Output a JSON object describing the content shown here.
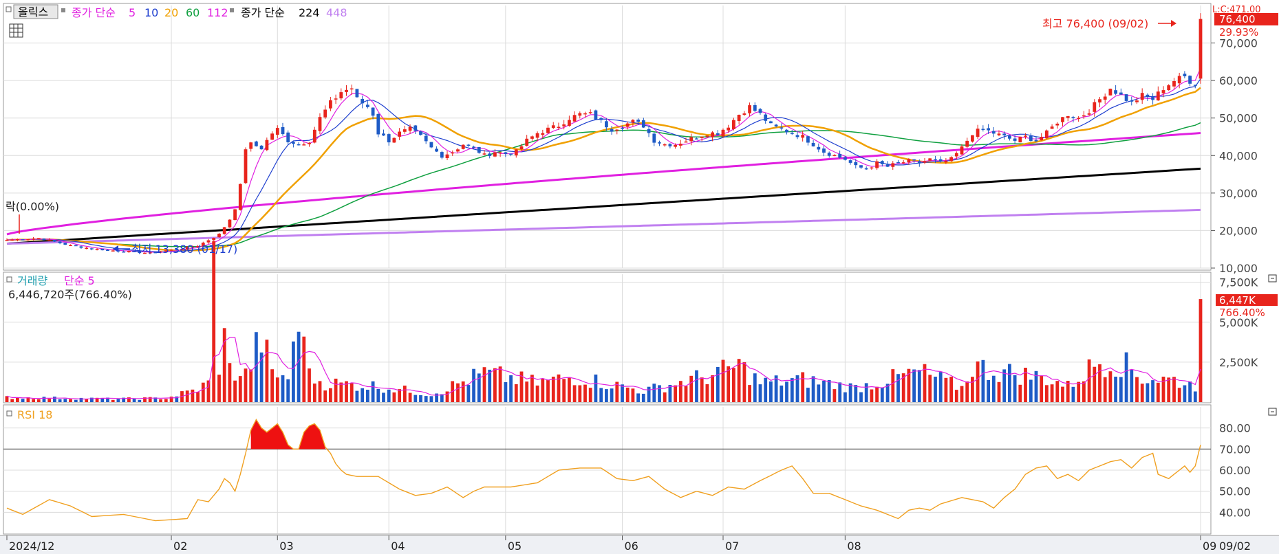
{
  "header": {
    "stock_name": "올릭스",
    "ma_label": "종가 단순",
    "ma_periods": [
      "5",
      "10",
      "20",
      "60",
      "112"
    ],
    "ma_colors": [
      "#e020e0",
      "#1e3fcf",
      "#f0a000",
      "#10a040",
      "#e020e0"
    ],
    "ma2_label": "종가 단순",
    "ma2_periods": [
      "224",
      "448"
    ],
    "ma2_colors": [
      "#000000",
      "#c080f0"
    ],
    "top_right_partial": "L:C:471.00"
  },
  "price_panel": {
    "current_price": "76,400",
    "change_pct": "29.93%",
    "high_annotation": "최고 76,400 (09/02)",
    "low_annotation": "최저 13,380 (01/17)",
    "left_annotation": "락(0.00%)",
    "y_ticks": [
      "70,000",
      "60,000",
      "50,000",
      "40,000",
      "30,000",
      "20,000",
      "10,000"
    ]
  },
  "volume_panel": {
    "title": "거래량",
    "ma_label": "단순 5",
    "current_value": "6,446,720주(766.40%)",
    "badge_value": "6,447K",
    "badge_pct": "766.40%",
    "y_ticks": [
      "7,500K",
      "5,000K",
      "2,500K"
    ]
  },
  "rsi_panel": {
    "title": "RSI 18",
    "y_ticks": [
      "80.00",
      "70.00",
      "60.00",
      "50.00",
      "40.00"
    ],
    "current": "72.00"
  },
  "x_axis": {
    "labels": [
      "2024/12",
      "02",
      "03",
      "04",
      "05",
      "06",
      "07",
      "08",
      "09"
    ],
    "right_label": "09/02"
  },
  "colors": {
    "up": "#e8241c",
    "down": "#1e5bc6",
    "ma5": "#e020e0",
    "ma10": "#1e3fcf",
    "ma20": "#f0a000",
    "ma60": "#10a040",
    "ma112": "#e020e0",
    "ma224": "#000000",
    "ma448": "#c080f0",
    "rsi": "#f0a020",
    "grid": "#dcdcdc"
  },
  "chart_data": [
    {
      "type": "candlestick",
      "title": "올릭스",
      "x_labels": [
        "2024/12",
        "02",
        "03",
        "04",
        "05",
        "06",
        "07",
        "08",
        "09"
      ],
      "ylim": [
        10000,
        80000
      ],
      "close_keypoints": [
        [
          0,
          17500
        ],
        [
          6,
          18000
        ],
        [
          12,
          16000
        ],
        [
          17,
          15000
        ],
        [
          22,
          14500
        ],
        [
          27,
          14000
        ],
        [
          29,
          14500
        ],
        [
          32,
          15000
        ],
        [
          36,
          16000
        ],
        [
          38,
          17500
        ],
        [
          40,
          19000
        ],
        [
          41,
          21000
        ],
        [
          42,
          23000
        ],
        [
          43,
          26000
        ],
        [
          44,
          32000
        ],
        [
          45,
          42000
        ],
        [
          46,
          43000
        ],
        [
          48,
          42000
        ],
        [
          50,
          46000
        ],
        [
          51,
          47000
        ],
        [
          53,
          44000
        ],
        [
          55,
          43000
        ],
        [
          57,
          44000
        ],
        [
          59,
          50000
        ],
        [
          61,
          54000
        ],
        [
          63,
          57000
        ],
        [
          65,
          58000
        ],
        [
          66,
          55000
        ],
        [
          68,
          53000
        ],
        [
          69,
          51000
        ],
        [
          70,
          46000
        ],
        [
          72,
          44000
        ],
        [
          74,
          46000
        ],
        [
          76,
          47000
        ],
        [
          78,
          45000
        ],
        [
          80,
          42000
        ],
        [
          82,
          40000
        ],
        [
          84,
          41000
        ],
        [
          86,
          43000
        ],
        [
          88,
          42000
        ],
        [
          90,
          40000
        ],
        [
          92,
          41000
        ],
        [
          94,
          40500
        ],
        [
          96,
          41000
        ],
        [
          98,
          44000
        ],
        [
          100,
          46000
        ],
        [
          102,
          47000
        ],
        [
          104,
          48000
        ],
        [
          106,
          50000
        ],
        [
          108,
          51000
        ],
        [
          110,
          51000
        ],
        [
          112,
          49000
        ],
        [
          114,
          47000
        ],
        [
          116,
          48000
        ],
        [
          118,
          49000
        ],
        [
          120,
          48000
        ],
        [
          122,
          44000
        ],
        [
          124,
          43000
        ],
        [
          126,
          43000
        ],
        [
          128,
          44000
        ],
        [
          130,
          45000
        ],
        [
          132,
          46000
        ],
        [
          134,
          46000
        ],
        [
          136,
          48000
        ],
        [
          138,
          51000
        ],
        [
          140,
          53000
        ],
        [
          142,
          51000
        ],
        [
          144,
          48000
        ],
        [
          146,
          47000
        ],
        [
          148,
          46000
        ],
        [
          150,
          45000
        ],
        [
          152,
          43000
        ],
        [
          154,
          41000
        ],
        [
          156,
          40000
        ],
        [
          158,
          39000
        ],
        [
          160,
          37000
        ],
        [
          162,
          36500
        ],
        [
          164,
          38000
        ],
        [
          166,
          37000
        ],
        [
          168,
          38000
        ],
        [
          170,
          38500
        ],
        [
          172,
          38000
        ],
        [
          174,
          39000
        ],
        [
          176,
          38000
        ],
        [
          178,
          39000
        ],
        [
          180,
          42000
        ],
        [
          182,
          46000
        ],
        [
          184,
          47000
        ],
        [
          186,
          46000
        ],
        [
          188,
          45000
        ],
        [
          190,
          44000
        ],
        [
          192,
          45000
        ],
        [
          194,
          44000
        ],
        [
          196,
          46000
        ],
        [
          198,
          49000
        ],
        [
          200,
          51000
        ],
        [
          202,
          50000
        ],
        [
          204,
          52000
        ],
        [
          206,
          55000
        ],
        [
          208,
          58000
        ],
        [
          210,
          56000
        ],
        [
          212,
          54000
        ],
        [
          214,
          56000
        ],
        [
          216,
          55000
        ],
        [
          218,
          58000
        ],
        [
          220,
          60000
        ],
        [
          222,
          61000
        ],
        [
          224,
          58800
        ],
        [
          225,
          76400
        ]
      ],
      "ma_series": [
        {
          "period": "224",
          "from": 16500,
          "to": 36500
        },
        {
          "period": "448",
          "from": 16500,
          "to": 25500
        },
        {
          "period": "112",
          "from": 19000,
          "to": 46000
        }
      ]
    },
    {
      "type": "bar",
      "title": "거래량",
      "ylim": [
        0,
        8000000
      ],
      "volume_keypoints": [
        [
          0,
          300000
        ],
        [
          20,
          200000
        ],
        [
          30,
          250000
        ],
        [
          36,
          800000
        ],
        [
          38,
          1200000
        ],
        [
          39,
          8500000
        ],
        [
          40,
          2500000
        ],
        [
          41,
          3800000
        ],
        [
          42,
          2000000
        ],
        [
          45,
          1700000
        ],
        [
          48,
          4100000
        ],
        [
          49,
          2900000
        ],
        [
          50,
          1700000
        ],
        [
          53,
          1600000
        ],
        [
          56,
          5800000
        ],
        [
          57,
          1600000
        ],
        [
          60,
          1200000
        ],
        [
          70,
          1000000
        ],
        [
          80,
          500000
        ],
        [
          90,
          1800000
        ],
        [
          100,
          1200000
        ],
        [
          107,
          1600000
        ],
        [
          120,
          700000
        ],
        [
          134,
          1800000
        ],
        [
          138,
          2300000
        ],
        [
          142,
          1200000
        ],
        [
          150,
          1400000
        ],
        [
          160,
          900000
        ],
        [
          172,
          1900000
        ],
        [
          180,
          900000
        ],
        [
          182,
          2300000
        ],
        [
          185,
          2000000
        ],
        [
          190,
          1800000
        ],
        [
          196,
          1500000
        ],
        [
          200,
          1000000
        ],
        [
          206,
          2600000
        ],
        [
          210,
          2500000
        ],
        [
          214,
          1500000
        ],
        [
          220,
          1400000
        ],
        [
          224,
          1000000
        ],
        [
          225,
          6446720
        ]
      ]
    },
    {
      "type": "line",
      "title": "RSI 18",
      "ylim": [
        30,
        90
      ],
      "rsi_keypoints": [
        [
          0,
          42
        ],
        [
          3,
          39
        ],
        [
          8,
          46
        ],
        [
          12,
          43
        ],
        [
          16,
          38
        ],
        [
          22,
          39
        ],
        [
          28,
          36
        ],
        [
          34,
          37
        ],
        [
          36,
          46
        ],
        [
          38,
          45
        ],
        [
          40,
          51
        ],
        [
          41,
          56
        ],
        [
          42,
          54
        ],
        [
          43,
          50
        ],
        [
          44,
          58
        ],
        [
          45,
          68
        ],
        [
          46,
          79
        ],
        [
          47,
          84
        ],
        [
          48,
          80
        ],
        [
          49,
          78
        ],
        [
          50,
          80
        ],
        [
          51,
          82
        ],
        [
          52,
          78
        ],
        [
          53,
          72
        ],
        [
          54,
          70
        ],
        [
          55,
          70
        ],
        [
          56,
          78
        ],
        [
          57,
          81
        ],
        [
          58,
          82
        ],
        [
          59,
          79
        ],
        [
          60,
          71
        ],
        [
          61,
          68
        ],
        [
          62,
          63
        ],
        [
          63,
          60
        ],
        [
          64,
          58
        ],
        [
          66,
          57
        ],
        [
          70,
          57
        ],
        [
          74,
          51
        ],
        [
          77,
          48
        ],
        [
          80,
          49
        ],
        [
          83,
          52
        ],
        [
          86,
          47
        ],
        [
          88,
          50
        ],
        [
          90,
          52
        ],
        [
          95,
          52
        ],
        [
          100,
          54
        ],
        [
          104,
          60
        ],
        [
          108,
          61
        ],
        [
          112,
          61
        ],
        [
          115,
          56
        ],
        [
          118,
          55
        ],
        [
          121,
          57
        ],
        [
          124,
          51
        ],
        [
          127,
          47
        ],
        [
          130,
          50
        ],
        [
          133,
          48
        ],
        [
          136,
          52
        ],
        [
          139,
          51
        ],
        [
          142,
          55
        ],
        [
          146,
          60
        ],
        [
          148,
          62
        ],
        [
          150,
          56
        ],
        [
          152,
          49
        ],
        [
          155,
          49
        ],
        [
          158,
          46
        ],
        [
          161,
          43
        ],
        [
          164,
          41
        ],
        [
          166,
          39
        ],
        [
          168,
          37
        ],
        [
          170,
          41
        ],
        [
          172,
          42
        ],
        [
          174,
          41
        ],
        [
          176,
          44
        ],
        [
          180,
          47
        ],
        [
          184,
          45
        ],
        [
          186,
          42
        ],
        [
          188,
          47
        ],
        [
          190,
          51
        ],
        [
          192,
          58
        ],
        [
          194,
          61
        ],
        [
          196,
          62
        ],
        [
          198,
          56
        ],
        [
          200,
          58
        ],
        [
          202,
          55
        ],
        [
          204,
          60
        ],
        [
          206,
          62
        ],
        [
          208,
          64
        ],
        [
          210,
          65
        ],
        [
          212,
          61
        ],
        [
          214,
          66
        ],
        [
          216,
          68
        ],
        [
          217,
          58
        ],
        [
          219,
          56
        ],
        [
          221,
          60
        ],
        [
          222,
          62
        ],
        [
          223,
          59
        ],
        [
          224,
          62
        ],
        [
          225,
          72
        ]
      ]
    }
  ]
}
